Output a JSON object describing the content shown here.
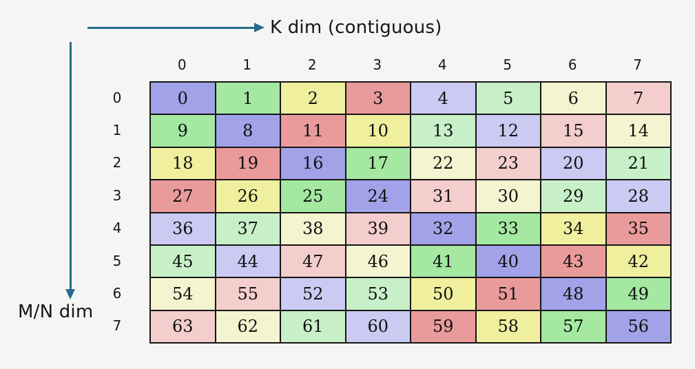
{
  "background": "#f5f5f3",
  "arrow_color": "#266b8e",
  "axes": {
    "k_label": "K dim (contiguous)",
    "mn_label": "M/N dim"
  },
  "matrix": {
    "col_headers": [
      "0",
      "1",
      "2",
      "3",
      "4",
      "5",
      "6",
      "7"
    ],
    "row_headers": [
      "0",
      "1",
      "2",
      "3",
      "4",
      "5",
      "6",
      "7"
    ],
    "rows": [
      [
        0,
        1,
        2,
        3,
        4,
        5,
        6,
        7
      ],
      [
        9,
        8,
        11,
        10,
        13,
        12,
        15,
        14
      ],
      [
        18,
        19,
        16,
        17,
        22,
        23,
        20,
        21
      ],
      [
        27,
        26,
        25,
        24,
        31,
        30,
        29,
        28
      ],
      [
        36,
        37,
        38,
        39,
        32,
        33,
        34,
        35
      ],
      [
        45,
        44,
        47,
        46,
        41,
        40,
        43,
        42
      ],
      [
        54,
        55,
        52,
        53,
        50,
        51,
        48,
        49
      ],
      [
        63,
        62,
        61,
        60,
        59,
        58,
        57,
        56
      ]
    ],
    "cell_palette_by_value_mod8": [
      "#a2a2e8",
      "#a4e8a2",
      "#efef9e",
      "#e99a9a",
      "#cacaf2",
      "#c8f0c8",
      "#f4f4d0",
      "#f4cdcd"
    ],
    "border_color": "#141414"
  }
}
